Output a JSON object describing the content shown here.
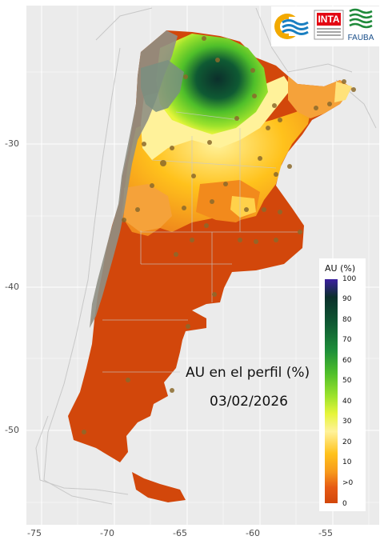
{
  "title": "AU en el perfil (%)",
  "date": "03/02/2026",
  "x_ticks": [
    "-75",
    "-70",
    "-65",
    "-60",
    "-55"
  ],
  "y_ticks": [
    "-30",
    "-40",
    "-50"
  ],
  "legend": {
    "title": "AU (%)",
    "ticks": [
      "100",
      "90",
      "80",
      "70",
      "60",
      "50",
      "40",
      "30",
      "20",
      "10",
      ">0",
      "0"
    ],
    "colors": [
      "#3b1fa0",
      "#0b2f2b",
      "#0f5a33",
      "#1e8f3a",
      "#4fbf2a",
      "#9be22c",
      "#e6f53a",
      "#fff29a",
      "#ffc21c",
      "#f79a1c",
      "#e65a14",
      "#d2470b"
    ]
  },
  "logos": {
    "inta": "INTA",
    "fauba": "FAUBA"
  },
  "icons": [
    "circle-wave-logo-icon",
    "inta-logo-icon",
    "fauba-logo-icon"
  ]
}
